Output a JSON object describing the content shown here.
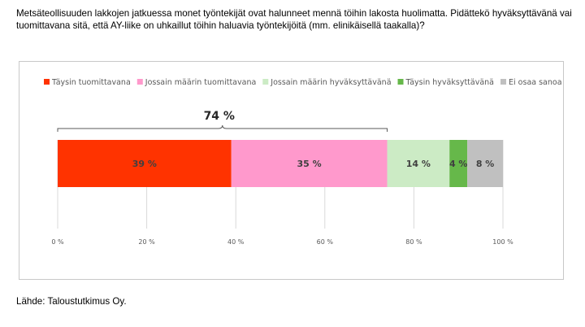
{
  "question": "Metsäteollisuuden lakkojen jatkuessa monet työntekijät ovat halunneet mennä töihin lakosta huolimatta. Pidättekö hyväksyttävänä vai tuomittavana sitä, että AY-liike on uhkaillut töihin haluavia työntekijöitä (mm. elinikäisellä taakalla)?",
  "source": "Lähde: Taloustutkimus Oy.",
  "chart_data": {
    "type": "bar",
    "orientation": "horizontal-stacked-100",
    "series": [
      {
        "name": "Täysin tuomittavana",
        "value": 39,
        "label": "39 %",
        "color": "#ff3300"
      },
      {
        "name": "Jossain määrin tuomittavana",
        "value": 35,
        "label": "35 %",
        "color": "#ff99cc"
      },
      {
        "name": "Jossain määrin hyväksyttävänä",
        "value": 14,
        "label": "14 %",
        "color": "#ccebc5"
      },
      {
        "name": "Täysin hyväksyttävänä",
        "value": 4,
        "label": "4 %",
        "color": "#66b84a"
      },
      {
        "name": "Ei osaa sanoa",
        "value": 8,
        "label": "8 %",
        "color": "#c0c0c0"
      }
    ],
    "xlim": [
      0,
      100
    ],
    "xticks": [
      0,
      20,
      40,
      60,
      80,
      100
    ],
    "xtick_labels": [
      "0 %",
      "20 %",
      "40 %",
      "60 %",
      "80 %",
      "100 %"
    ],
    "bracket": {
      "from": 0,
      "to": 74,
      "label": "74 %"
    },
    "grid": true,
    "legend": "top"
  }
}
